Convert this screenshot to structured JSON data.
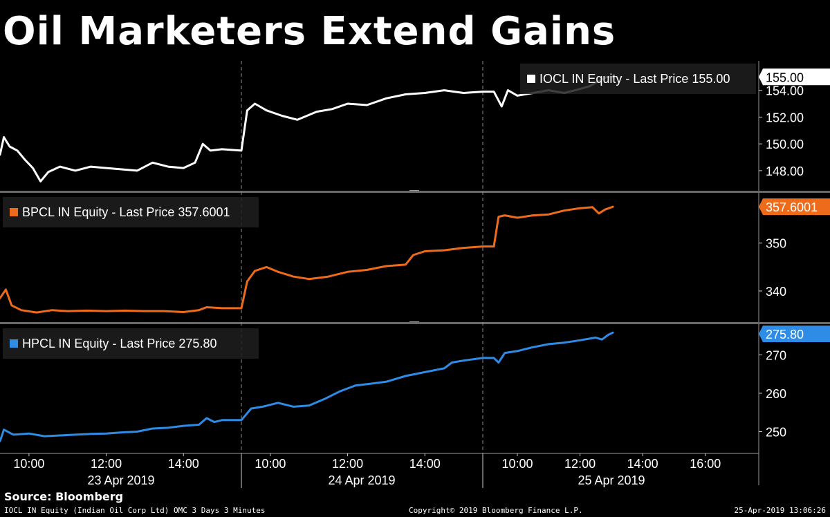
{
  "title": "Oil Marketers Extend Gains",
  "footer": {
    "source": "Source: Bloomberg",
    "ticker_line": "IOCL IN Equity (Indian Oil Corp Ltd) OMC 3 Days 3 Minutes",
    "copyright": "Copyright© 2019 Bloomberg Finance L.P.",
    "timestamp": "25-Apr-2019 13:06:26"
  },
  "colors": {
    "background": "#000000",
    "iocl": "#ffffff",
    "bpcl": "#ee6b1c",
    "hpcl": "#2f8ce6"
  },
  "chart_data": {
    "type": "line",
    "x_axis": {
      "days": [
        "23 Apr 2019",
        "24 Apr 2019",
        "25 Apr 2019"
      ],
      "ticks": [
        {
          "day": 0,
          "hour": 10,
          "label": "10:00"
        },
        {
          "day": 0,
          "hour": 12,
          "label": "12:00"
        },
        {
          "day": 0,
          "hour": 14,
          "label": "14:00"
        },
        {
          "day": 1,
          "hour": 10,
          "label": "10:00"
        },
        {
          "day": 1,
          "hour": 12,
          "label": "12:00"
        },
        {
          "day": 1,
          "hour": 14,
          "label": "14:00"
        },
        {
          "day": 2,
          "hour": 10,
          "label": "10:00"
        },
        {
          "day": 2,
          "hour": 12,
          "label": "12:00"
        },
        {
          "day": 2,
          "hour": 14,
          "label": "14:00"
        },
        {
          "day": 2,
          "hour": 16,
          "label": "16:00"
        }
      ],
      "session_start": 9.25,
      "session_end": 15.5
    },
    "panels": [
      {
        "series": "IOCL IN Equity",
        "legend": "IOCL IN Equity - Last Price 155.00",
        "last_price": "155.00",
        "color": "#ffffff",
        "ylim": [
          146.5,
          156.2
        ],
        "yticks": [
          "148.00",
          "150.00",
          "152.00",
          "154.00"
        ],
        "points": [
          [
            0,
            9.25,
            149.2
          ],
          [
            0,
            9.35,
            150.5
          ],
          [
            0,
            9.5,
            149.8
          ],
          [
            0,
            9.7,
            149.5
          ],
          [
            0,
            9.9,
            148.8
          ],
          [
            0,
            10.1,
            148.2
          ],
          [
            0,
            10.3,
            147.2
          ],
          [
            0,
            10.5,
            147.9
          ],
          [
            0,
            10.8,
            148.3
          ],
          [
            0,
            11.2,
            148.0
          ],
          [
            0,
            11.6,
            148.3
          ],
          [
            0,
            12.0,
            148.2
          ],
          [
            0,
            12.4,
            148.1
          ],
          [
            0,
            12.8,
            148.0
          ],
          [
            0,
            13.2,
            148.6
          ],
          [
            0,
            13.6,
            148.3
          ],
          [
            0,
            14.0,
            148.2
          ],
          [
            0,
            14.3,
            148.6
          ],
          [
            0,
            14.5,
            150.0
          ],
          [
            0,
            14.7,
            149.5
          ],
          [
            0,
            15.0,
            149.6
          ],
          [
            0,
            15.5,
            149.5
          ],
          [
            1,
            9.25,
            149.5
          ],
          [
            1,
            9.4,
            152.5
          ],
          [
            1,
            9.6,
            153.0
          ],
          [
            1,
            9.9,
            152.5
          ],
          [
            1,
            10.3,
            152.1
          ],
          [
            1,
            10.7,
            151.8
          ],
          [
            1,
            11.2,
            152.4
          ],
          [
            1,
            11.6,
            152.6
          ],
          [
            1,
            12.0,
            153.0
          ],
          [
            1,
            12.5,
            152.9
          ],
          [
            1,
            13.0,
            153.4
          ],
          [
            1,
            13.5,
            153.7
          ],
          [
            1,
            14.0,
            153.8
          ],
          [
            1,
            14.5,
            154.0
          ],
          [
            1,
            15.0,
            153.8
          ],
          [
            1,
            15.5,
            153.9
          ],
          [
            2,
            9.25,
            153.9
          ],
          [
            2,
            9.5,
            152.8
          ],
          [
            2,
            9.7,
            154.0
          ],
          [
            2,
            10.0,
            153.6
          ],
          [
            2,
            10.5,
            153.8
          ],
          [
            2,
            11.0,
            154.0
          ],
          [
            2,
            11.5,
            153.8
          ],
          [
            2,
            12.0,
            154.1
          ],
          [
            2,
            12.3,
            154.3
          ],
          [
            2,
            12.6,
            154.7
          ],
          [
            2,
            12.85,
            155.0
          ],
          [
            2,
            13.05,
            155.0
          ]
        ]
      },
      {
        "series": "BPCL IN Equity",
        "legend": "BPCL IN Equity - Last Price 357.6001",
        "last_price": "357.6001",
        "color": "#ee6b1c",
        "ylim": [
          333.5,
          360.5
        ],
        "yticks": [
          "340",
          "350"
        ],
        "points": [
          [
            0,
            9.25,
            338.5
          ],
          [
            0,
            9.4,
            340.3
          ],
          [
            0,
            9.55,
            337.0
          ],
          [
            0,
            9.8,
            336.0
          ],
          [
            0,
            10.2,
            335.5
          ],
          [
            0,
            10.6,
            336.0
          ],
          [
            0,
            11.0,
            335.8
          ],
          [
            0,
            11.5,
            335.9
          ],
          [
            0,
            12.0,
            335.8
          ],
          [
            0,
            12.5,
            335.9
          ],
          [
            0,
            13.0,
            335.8
          ],
          [
            0,
            13.5,
            335.8
          ],
          [
            0,
            14.0,
            335.6
          ],
          [
            0,
            14.4,
            336.0
          ],
          [
            0,
            14.6,
            336.6
          ],
          [
            0,
            15.0,
            336.4
          ],
          [
            0,
            15.5,
            336.4
          ],
          [
            1,
            9.25,
            336.4
          ],
          [
            1,
            9.4,
            342.0
          ],
          [
            1,
            9.6,
            344.2
          ],
          [
            1,
            9.9,
            345.0
          ],
          [
            1,
            10.2,
            344.0
          ],
          [
            1,
            10.6,
            343.0
          ],
          [
            1,
            11.0,
            342.5
          ],
          [
            1,
            11.5,
            343.0
          ],
          [
            1,
            12.0,
            344.0
          ],
          [
            1,
            12.5,
            344.4
          ],
          [
            1,
            13.0,
            345.2
          ],
          [
            1,
            13.5,
            345.5
          ],
          [
            1,
            13.7,
            347.5
          ],
          [
            1,
            14.0,
            348.3
          ],
          [
            1,
            14.5,
            348.5
          ],
          [
            1,
            15.0,
            349.0
          ],
          [
            1,
            15.5,
            349.3
          ],
          [
            2,
            9.25,
            349.3
          ],
          [
            2,
            9.4,
            355.5
          ],
          [
            2,
            9.6,
            355.8
          ],
          [
            2,
            10.0,
            355.3
          ],
          [
            2,
            10.5,
            355.8
          ],
          [
            2,
            11.0,
            356.0
          ],
          [
            2,
            11.5,
            356.8
          ],
          [
            2,
            12.0,
            357.3
          ],
          [
            2,
            12.4,
            357.5
          ],
          [
            2,
            12.6,
            356.2
          ],
          [
            2,
            12.8,
            357.0
          ],
          [
            2,
            13.05,
            357.6
          ]
        ]
      },
      {
        "series": "HPCL IN Equity",
        "legend": "HPCL IN Equity - Last Price 275.80",
        "last_price": "275.80",
        "color": "#2f8ce6",
        "ylim": [
          244.5,
          278.0
        ],
        "yticks": [
          "250",
          "260",
          "270"
        ],
        "points": [
          [
            0,
            9.25,
            247.5
          ],
          [
            0,
            9.35,
            250.5
          ],
          [
            0,
            9.6,
            249.2
          ],
          [
            0,
            10.0,
            249.5
          ],
          [
            0,
            10.4,
            248.8
          ],
          [
            0,
            10.8,
            249.0
          ],
          [
            0,
            11.2,
            249.2
          ],
          [
            0,
            11.6,
            249.4
          ],
          [
            0,
            12.0,
            249.5
          ],
          [
            0,
            12.4,
            249.8
          ],
          [
            0,
            12.8,
            250.0
          ],
          [
            0,
            13.2,
            250.8
          ],
          [
            0,
            13.6,
            251.0
          ],
          [
            0,
            14.0,
            251.5
          ],
          [
            0,
            14.4,
            251.8
          ],
          [
            0,
            14.6,
            253.5
          ],
          [
            0,
            14.8,
            252.5
          ],
          [
            0,
            15.0,
            253.0
          ],
          [
            0,
            15.5,
            253.0
          ],
          [
            1,
            9.25,
            253.0
          ],
          [
            1,
            9.5,
            256.0
          ],
          [
            1,
            9.8,
            256.5
          ],
          [
            1,
            10.2,
            257.5
          ],
          [
            1,
            10.6,
            256.5
          ],
          [
            1,
            11.0,
            256.8
          ],
          [
            1,
            11.4,
            258.5
          ],
          [
            1,
            11.8,
            260.5
          ],
          [
            1,
            12.2,
            262.0
          ],
          [
            1,
            12.6,
            262.5
          ],
          [
            1,
            13.0,
            263.0
          ],
          [
            1,
            13.5,
            264.5
          ],
          [
            1,
            14.0,
            265.5
          ],
          [
            1,
            14.5,
            266.5
          ],
          [
            1,
            14.7,
            268.0
          ],
          [
            1,
            15.0,
            268.5
          ],
          [
            1,
            15.5,
            269.2
          ],
          [
            2,
            9.25,
            269.2
          ],
          [
            2,
            9.4,
            268.0
          ],
          [
            2,
            9.6,
            270.5
          ],
          [
            2,
            10.0,
            271.0
          ],
          [
            2,
            10.5,
            272.0
          ],
          [
            2,
            11.0,
            272.8
          ],
          [
            2,
            11.5,
            273.2
          ],
          [
            2,
            12.0,
            273.8
          ],
          [
            2,
            12.5,
            274.5
          ],
          [
            2,
            12.7,
            274.0
          ],
          [
            2,
            12.9,
            275.2
          ],
          [
            2,
            13.05,
            275.8
          ]
        ]
      }
    ]
  }
}
